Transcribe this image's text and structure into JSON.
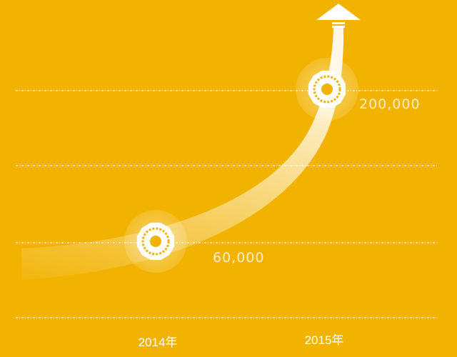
{
  "chart_data": {
    "type": "line",
    "categories": [
      "2014年",
      "2015年"
    ],
    "values": [
      60000,
      200000
    ],
    "data_labels": [
      "60,000",
      "200,000"
    ],
    "grid": true,
    "arrow": "up",
    "colors": {
      "background": "#f2b200",
      "curve": "#ffffff",
      "text": "#ffffff"
    }
  }
}
